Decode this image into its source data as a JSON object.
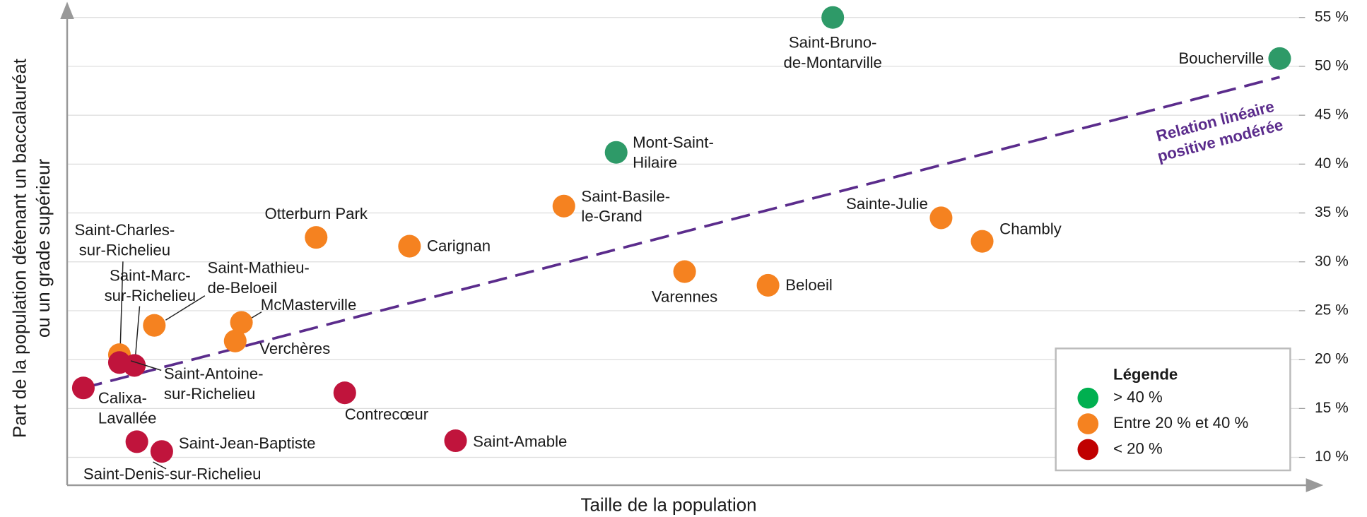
{
  "chart_data": {
    "type": "scatter",
    "x_label": "Taille de la population",
    "y_label": [
      "Part de la population détenant un baccalauréat",
      "ou un grade supérieur"
    ],
    "xlim": [
      0,
      100
    ],
    "ylim": [
      7.15,
      55.45
    ],
    "yticks": [
      {
        "value": 10,
        "label": "10 %"
      },
      {
        "value": 15,
        "label": "15 %"
      },
      {
        "value": 20,
        "label": "20 %"
      },
      {
        "value": 25,
        "label": "25 %"
      },
      {
        "value": 30,
        "label": "30 %"
      },
      {
        "value": 35,
        "label": "35 %"
      },
      {
        "value": 40,
        "label": "40 %"
      },
      {
        "value": 45,
        "label": "45 %"
      },
      {
        "value": 50,
        "label": "50 %"
      },
      {
        "value": 55,
        "label": "55 %"
      }
    ],
    "grid": true,
    "legend": {
      "title": "Légende",
      "position": "lower right"
    },
    "series": [
      {
        "name": "> 40 %",
        "color": "#2e9a68",
        "legend_color": "#00b050",
        "x": [
          61.5,
          97.4,
          44.1
        ],
        "values": [
          55.0,
          50.8,
          41.2
        ],
        "labels": [
          [
            "Saint-Bruno-",
            "de-Montarville"
          ],
          [
            "Boucherville"
          ],
          [
            "Mont-Saint-",
            "Hilaire"
          ]
        ]
      },
      {
        "name": "Entre 20 % et 40 %",
        "color": "#f58220",
        "legend_color": "#f58220",
        "x": [
          39.9,
          70.2,
          73.5,
          20.0,
          27.5,
          49.6,
          56.3,
          7.0,
          14.0,
          13.5,
          4.2
        ],
        "values": [
          35.7,
          34.5,
          32.1,
          32.5,
          31.6,
          29.0,
          27.6,
          23.5,
          23.8,
          21.9,
          20.5
        ],
        "labels": [
          [
            "Saint-Basile-",
            "le-Grand"
          ],
          [
            "Sainte-Julie"
          ],
          [
            "Chambly"
          ],
          [
            "Otterburn Park"
          ],
          [
            "Carignan"
          ],
          [
            "Varennes"
          ],
          [
            "Beloeil"
          ],
          [
            "Saint-Mathieu-",
            "de-Beloeil"
          ],
          [
            "McMasterville"
          ],
          [
            "Verchères"
          ],
          [
            "Saint-Charles-",
            "sur-Richelieu"
          ]
        ]
      },
      {
        "name": "< 20 %",
        "color": "#c0143c",
        "legend_color": "#c00000",
        "x": [
          5.4,
          4.2,
          1.3,
          22.3,
          31.2,
          5.6,
          7.6
        ],
        "values": [
          19.4,
          19.7,
          17.1,
          16.6,
          11.7,
          11.6,
          10.6
        ],
        "labels": [
          [
            "Saint-Marc-",
            "sur-Richelieu"
          ],
          [
            "Saint-Antoine-",
            "sur-Richelieu"
          ],
          [
            "Calixa-",
            "Lavallée"
          ],
          [
            "Contrecœur"
          ],
          [
            "Saint-Amable"
          ],
          [
            "Saint-Jean-Baptiste"
          ],
          [
            "Saint-Denis-sur-Richelieu"
          ]
        ]
      }
    ],
    "trendline": {
      "color": "#5b2c8c",
      "x": [
        1.3,
        97.4
      ],
      "values": [
        17.1,
        48.9
      ],
      "label": [
        "Relation linéaire",
        "positive modérée"
      ]
    }
  }
}
